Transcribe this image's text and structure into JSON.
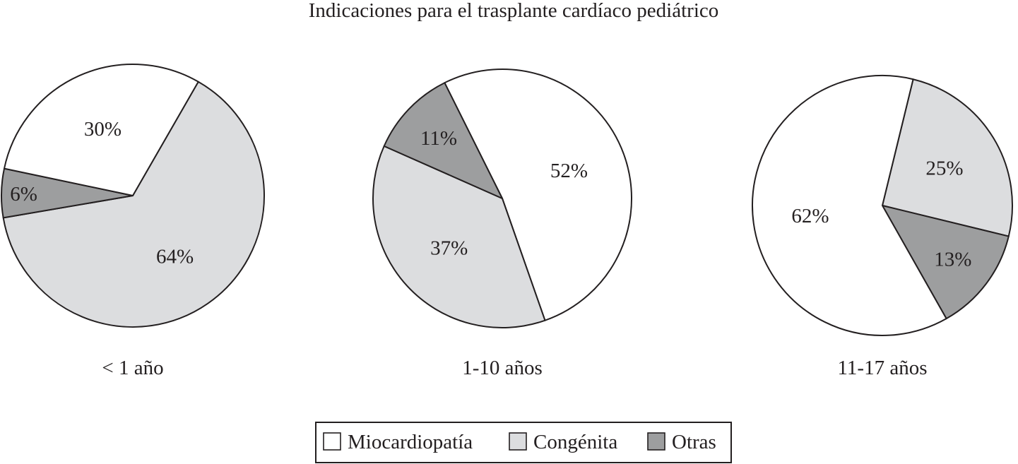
{
  "chart_data": {
    "type": "pie",
    "title": "Indicaciones para el trasplante cardíaco pediátrico",
    "legend": {
      "placement": "bottom",
      "entries": [
        {
          "name": "Miocardiopatía",
          "color": "#ffffff"
        },
        {
          "name": "Congénita",
          "color": "#dcdddf"
        },
        {
          "name": "Otras",
          "color": "#9d9e9f"
        }
      ]
    },
    "pies": [
      {
        "caption": "< 1 año",
        "slices": [
          {
            "category": "Miocardiopatía",
            "value": 30,
            "label": "30%"
          },
          {
            "category": "Congénita",
            "value": 64,
            "label": "64%"
          },
          {
            "category": "Otras",
            "value": 6,
            "label": "6%"
          }
        ]
      },
      {
        "caption": "1-10 años",
        "slices": [
          {
            "category": "Miocardiopatía",
            "value": 52,
            "label": "52%"
          },
          {
            "category": "Congénita",
            "value": 37,
            "label": "37%"
          },
          {
            "category": "Otras",
            "value": 11,
            "label": "11%"
          }
        ]
      },
      {
        "caption": "11-17 años",
        "slices": [
          {
            "category": "Miocardiopatía",
            "value": 62,
            "label": "62%"
          },
          {
            "category": "Congénita",
            "value": 25,
            "label": "25%"
          },
          {
            "category": "Otras",
            "value": 13,
            "label": "13%"
          }
        ]
      }
    ]
  }
}
